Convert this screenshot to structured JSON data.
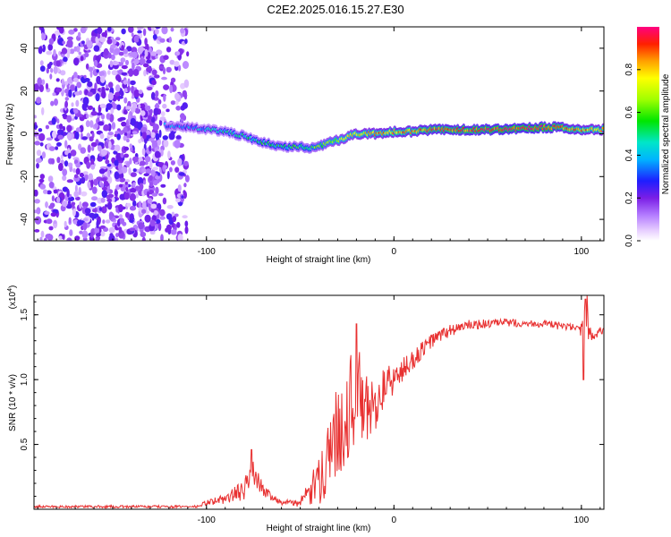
{
  "figure": {
    "title": "C2E2.2025.016.15.27.E30"
  },
  "chart_data": [
    {
      "type": "heatmap",
      "xlabel": "Height of straight line (km)",
      "ylabel": "Frequency (Hz)",
      "xlim": [
        -192,
        112
      ],
      "ylim": [
        -50,
        50
      ],
      "xticks": [
        -100,
        0,
        100
      ],
      "yticks": [
        -40,
        -20,
        0,
        20,
        40
      ],
      "colorbar": {
        "label": "Normalized spectral amplitude",
        "range": [
          0,
          1
        ],
        "ticks": [
          0.0,
          0.2,
          0.4,
          0.6,
          0.8
        ],
        "tick_labels": [
          "0.0",
          "0.2",
          "0.4",
          "0.6",
          "0.8"
        ]
      },
      "noise_region": {
        "x": [
          -192,
          -110
        ],
        "y": [
          -50,
          50
        ],
        "amplitude": [
          0.05,
          0.25
        ]
      },
      "trace": {
        "x": [
          -122,
          -110,
          -100,
          -90,
          -80,
          -70,
          -60,
          -50,
          -45,
          -40,
          -35,
          -30,
          -20,
          -10,
          0,
          10,
          20,
          40,
          60,
          80,
          90,
          100,
          112
        ],
        "frequency_hz": [
          4,
          3,
          2,
          1,
          -1,
          -4,
          -6,
          -6,
          -7,
          -6,
          -4,
          -3,
          0,
          0,
          1,
          1,
          2,
          2,
          2,
          3,
          3,
          2,
          2
        ],
        "amplitude": [
          0.3,
          0.35,
          0.4,
          0.45,
          0.45,
          0.5,
          0.5,
          0.55,
          0.55,
          0.6,
          0.65,
          0.7,
          0.75,
          0.8,
          0.85,
          0.85,
          0.9,
          0.92,
          0.95,
          0.95,
          0.9,
          0.85,
          0.8
        ]
      }
    },
    {
      "type": "line",
      "xlabel": "Height of straight line (km)",
      "ylabel": "SNR (10 * v/v)",
      "scale_label": "(x10",
      "scale_exponent": "4",
      "scale_close": ")",
      "xlim": [
        -192,
        112
      ],
      "ylim": [
        0,
        1.65
      ],
      "xticks": [
        -100,
        0,
        100
      ],
      "yticks": [
        0.5,
        1.0,
        1.5
      ],
      "ytick_labels": [
        "0.5",
        "1.0",
        "1.5"
      ],
      "series": [
        {
          "name": "SNR",
          "color": "#e83030",
          "envelope_x": [
            -192,
            -105,
            -100,
            -90,
            -80,
            -75,
            -70,
            -60,
            -50,
            -40,
            -35,
            -30,
            -25,
            -20,
            -15,
            -10,
            -5,
            0,
            10,
            20,
            30,
            40,
            60,
            80,
            95,
            100,
            103,
            105,
            112
          ],
          "envelope_y": [
            0.02,
            0.02,
            0.05,
            0.08,
            0.15,
            0.3,
            0.15,
            0.05,
            0.05,
            0.2,
            0.45,
            0.6,
            0.75,
            0.9,
            0.75,
            0.8,
            0.95,
            1.0,
            1.15,
            1.3,
            1.38,
            1.42,
            1.44,
            1.43,
            1.4,
            1.35,
            1.5,
            1.35,
            1.38
          ],
          "noise_amplitude": [
            0.01,
            0.01,
            0.02,
            0.04,
            0.08,
            0.1,
            0.05,
            0.02,
            0.03,
            0.2,
            0.3,
            0.35,
            0.4,
            0.4,
            0.3,
            0.2,
            0.15,
            0.12,
            0.08,
            0.06,
            0.05,
            0.04,
            0.03,
            0.03,
            0.03,
            0.1,
            0.2,
            0.05,
            0.03
          ],
          "spikes": [
            [
              -76,
              0.46
            ],
            [
              -20,
              1.43
            ],
            [
              102,
              1.62
            ],
            [
              101,
              1.0
            ]
          ]
        }
      ]
    }
  ]
}
